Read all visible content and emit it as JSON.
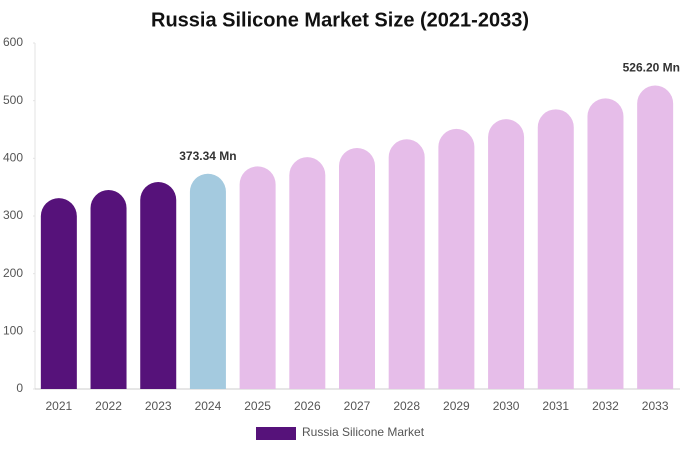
{
  "chart_data": {
    "type": "bar",
    "title": "Russia Silicone Market Size (2021-2033)",
    "categories": [
      "2021",
      "2022",
      "2023",
      "2024",
      "2025",
      "2026",
      "2027",
      "2028",
      "2029",
      "2030",
      "2031",
      "2032",
      "2033"
    ],
    "series": [
      {
        "name": "Russia Silicone Market",
        "color": "#56127a",
        "values": [
          331,
          345,
          359,
          373.34,
          386,
          402,
          418,
          433,
          451,
          468,
          485,
          504,
          526.2
        ],
        "value_labels": [
          null,
          null,
          null,
          "373.34 Mn",
          null,
          null,
          null,
          null,
          null,
          null,
          null,
          null,
          "526.20 Mn"
        ],
        "colors": [
          "#56127a",
          "#56127a",
          "#56127a",
          "#a4cadf",
          "#e6bde9",
          "#e6bde9",
          "#e6bde9",
          "#e6bde9",
          "#e6bde9",
          "#e6bde9",
          "#e6bde9",
          "#e6bde9",
          "#e6bde9"
        ]
      }
    ],
    "ylim": [
      0,
      600
    ],
    "yticks": [
      0,
      100,
      200,
      300,
      400,
      500,
      600
    ],
    "grid": false,
    "legend": "bottom"
  }
}
